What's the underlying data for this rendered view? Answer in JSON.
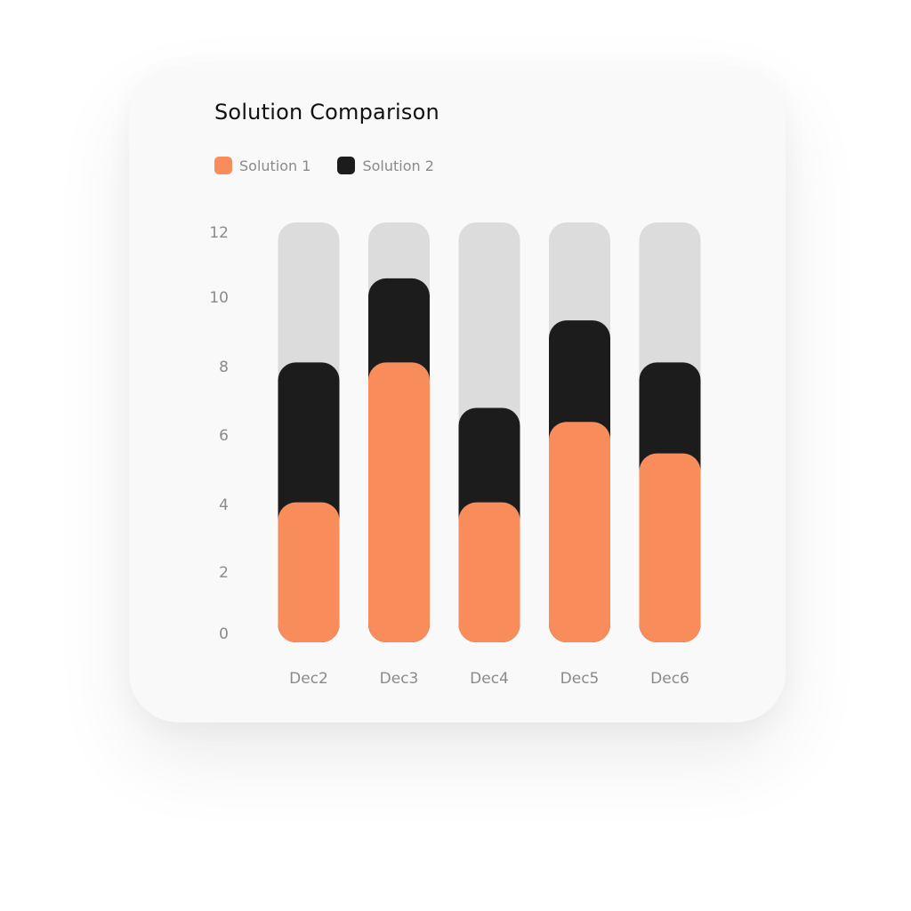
{
  "colors": {
    "solution1": "#f88c5b",
    "solution2": "#1c1c1c",
    "track": "#dcdcdc",
    "card": "#f9f9f9",
    "axis_text": "#8a8a8a"
  },
  "chart_data": {
    "type": "bar",
    "stacked": true,
    "title": "Solution Comparison",
    "categories": [
      "Dec2",
      "Dec3",
      "Dec4",
      "Dec5",
      "Dec6"
    ],
    "series": [
      {
        "name": "Solution 1",
        "values": [
          4,
          8,
          4,
          6.3,
          5.4
        ]
      },
      {
        "name": "Solution 2",
        "values": [
          4,
          2.4,
          2.7,
          2.9,
          2.6
        ]
      }
    ],
    "ylim": [
      0,
      12
    ],
    "yticks": [
      0,
      2,
      4,
      6,
      8,
      10,
      12
    ],
    "xlabel": "",
    "ylabel": "",
    "grid": false,
    "legend_position": "top-left"
  }
}
